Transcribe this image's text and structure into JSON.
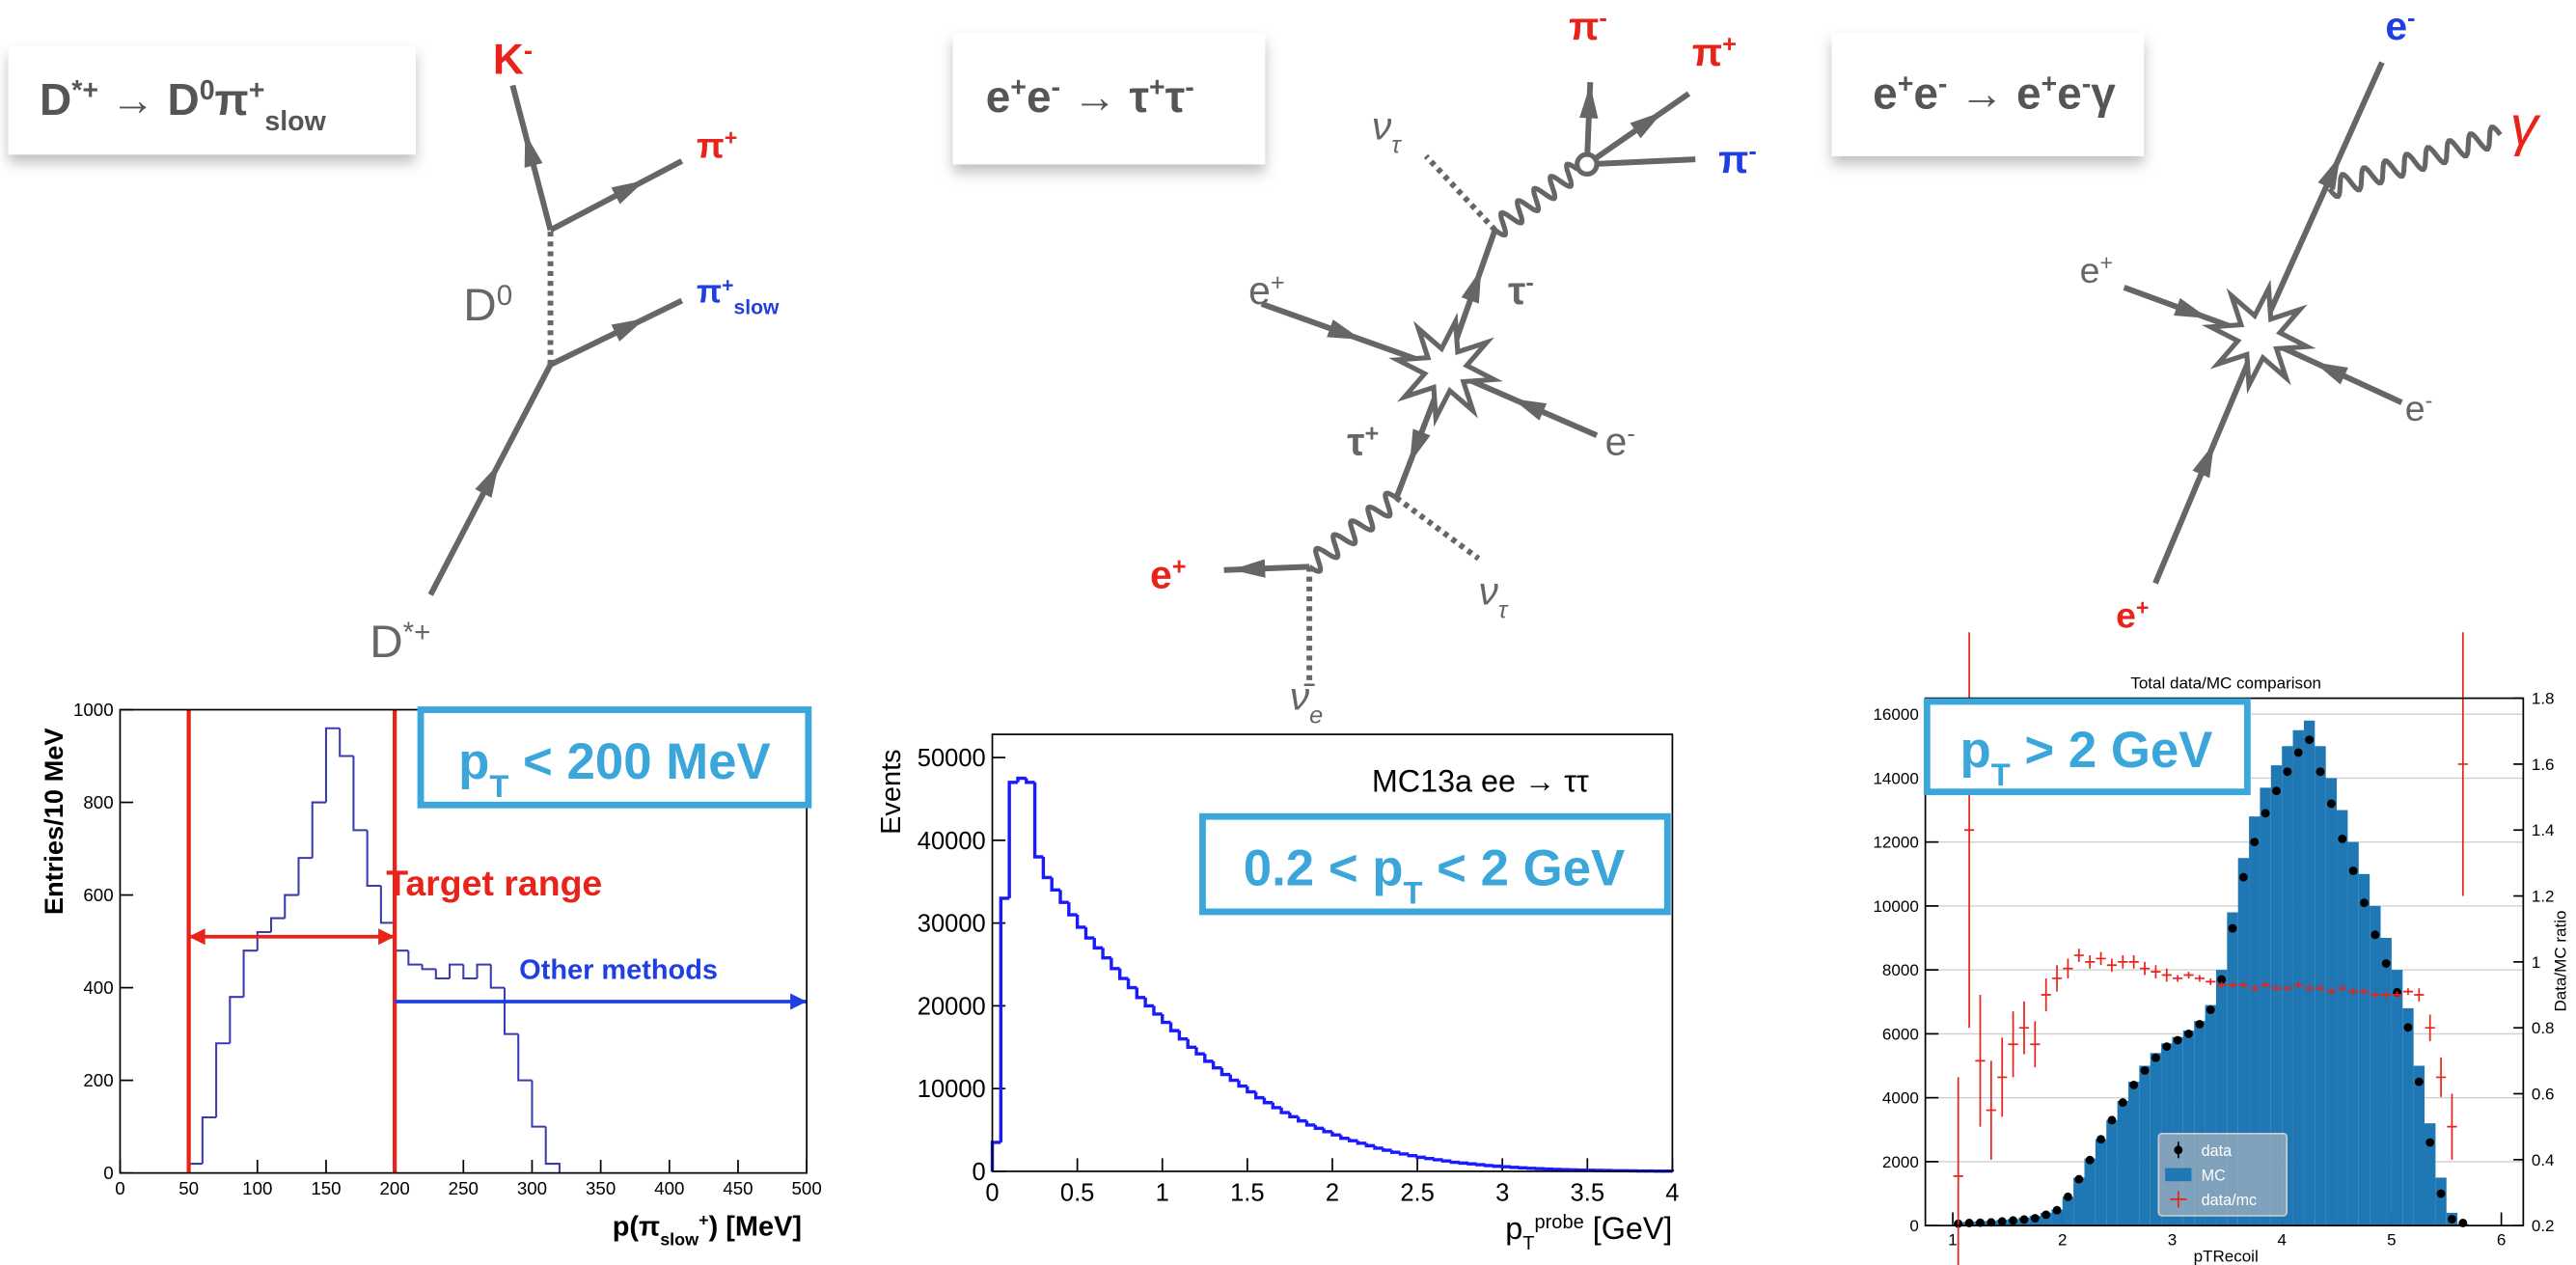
{
  "diagrams": [
    {
      "title": [
        "D",
        {
          "sup": "*+"
        },
        " → D",
        {
          "sup": "0"
        },
        "π",
        {
          "sup": "+"
        },
        {
          "sub": "slow"
        }
      ],
      "labels": [
        {
          "text": [
            "K",
            {
              "sup": "-"
            }
          ],
          "color": "#e8231a"
        },
        {
          "text": [
            "π",
            {
              "sup": "+"
            }
          ],
          "color": "#e8231a"
        },
        {
          "text": [
            "π",
            {
              "sup": "+"
            },
            {
              "sub": "slow"
            }
          ],
          "color": "#1f3fe0"
        },
        {
          "text": [
            "D",
            {
              "sup": "0"
            }
          ],
          "color": "#666666"
        },
        {
          "text": [
            "D",
            {
              "sup": "*+"
            }
          ],
          "color": "#666666"
        }
      ]
    },
    {
      "title": [
        "e",
        {
          "sup": "+"
        },
        "e",
        {
          "sup": "-"
        },
        " → τ",
        {
          "sup": "+"
        },
        "τ",
        {
          "sup": "-"
        }
      ],
      "labels": [
        {
          "text": [
            "π",
            {
              "sup": "-"
            }
          ],
          "color": "#e8231a"
        },
        {
          "text": [
            "π",
            {
              "sup": "+"
            }
          ],
          "color": "#e8231a"
        },
        {
          "text": [
            "π",
            {
              "sup": "-"
            }
          ],
          "color": "#1f3fe0"
        },
        {
          "text": [
            "ν",
            {
              "sub": "τ"
            }
          ],
          "color": "#666666"
        },
        {
          "text": [
            "e",
            {
              "sup": "+"
            }
          ],
          "color": "#666666"
        },
        {
          "text": [
            "τ",
            {
              "sup": "-"
            }
          ],
          "color": "#666666"
        },
        {
          "text": [
            "e",
            {
              "sup": "-"
            }
          ],
          "color": "#666666"
        },
        {
          "text": [
            "τ",
            {
              "sup": "+"
            }
          ],
          "color": "#666666"
        },
        {
          "text": [
            "e",
            {
              "sup": "+"
            }
          ],
          "color": "#e8231a"
        },
        {
          "text": [
            "ν",
            {
              "sub": "τ"
            }
          ],
          "color": "#666666"
        },
        {
          "text": [
            "ν̄",
            {
              "sub": "e"
            }
          ],
          "color": "#666666"
        }
      ]
    },
    {
      "title": [
        "e",
        {
          "sup": "+"
        },
        "e",
        {
          "sup": "-"
        },
        " → e",
        {
          "sup": "+"
        },
        "e",
        {
          "sup": "-"
        },
        "γ"
      ],
      "labels": [
        {
          "text": [
            "e",
            {
              "sup": "-"
            }
          ],
          "color": "#1f3fe0"
        },
        {
          "text": [
            "γ"
          ],
          "color": "#e8231a"
        },
        {
          "text": [
            "e",
            {
              "sup": "+"
            }
          ],
          "color": "#666666"
        },
        {
          "text": [
            "e",
            {
              "sup": "-"
            }
          ],
          "color": "#666666"
        },
        {
          "text": [
            "e",
            {
              "sup": "+"
            }
          ],
          "color": "#e8231a"
        }
      ]
    }
  ],
  "chart_data": [
    {
      "type": "histogram",
      "ylabel": "Entries/10 MeV",
      "xlabel": [
        "p(π",
        {
          "sub": "slow"
        },
        {
          "sup": "+"
        },
        ") [MeV]"
      ],
      "box": [
        "p",
        {
          "sub": "T"
        },
        " < 200 MeV"
      ],
      "box_color": "#3aa6da",
      "color": "#3b3bb0",
      "bins": [
        50,
        60,
        70,
        80,
        90,
        100,
        110,
        120,
        130,
        140,
        150,
        160,
        170,
        180,
        190,
        200,
        210,
        220,
        230,
        240,
        250,
        260,
        270,
        280,
        290,
        300,
        310,
        320
      ],
      "values": [
        20,
        120,
        280,
        380,
        480,
        520,
        550,
        600,
        680,
        800,
        960,
        900,
        740,
        620,
        540,
        480,
        450,
        440,
        420,
        450,
        420,
        450,
        400,
        300,
        200,
        100,
        20
      ],
      "xlim": [
        0,
        500
      ],
      "xticks": [
        0,
        50,
        100,
        150,
        200,
        250,
        300,
        350,
        400,
        450,
        500
      ],
      "ylim": [
        0,
        1000
      ],
      "yticks": [
        0,
        200,
        400,
        600,
        800,
        1000
      ],
      "vlines": [
        50,
        200
      ],
      "vline_color": "#e8231a",
      "annotations": [
        {
          "text": "Target range",
          "color": "#e8231a",
          "x": [
            50,
            200
          ],
          "y": 510,
          "arrow": "both"
        },
        {
          "text": "Other methods",
          "color": "#1f3fe0",
          "x": [
            200,
            500
          ],
          "y": 370,
          "arrow": "end"
        }
      ]
    },
    {
      "type": "histogram",
      "ylabel": "Events",
      "xlabel": [
        "p",
        {
          "sub": "T"
        },
        {
          "sup": "probe"
        },
        " [GeV]"
      ],
      "note": "MC13a ee → ττ",
      "box": [
        "0.2 < p",
        {
          "sub": "T"
        },
        " < 2 GeV"
      ],
      "box_color": "#3aa6da",
      "color": "#1a1aff",
      "bins": [
        0,
        0.05,
        0.1,
        0.15,
        0.2,
        0.25,
        0.3,
        0.35,
        0.4,
        0.45,
        0.5,
        0.55,
        0.6,
        0.65,
        0.7,
        0.75,
        0.8,
        0.85,
        0.9,
        0.95,
        1,
        1.05,
        1.1,
        1.15,
        1.2,
        1.25,
        1.3,
        1.35,
        1.4,
        1.45,
        1.5,
        1.55,
        1.6,
        1.65,
        1.7,
        1.75,
        1.8,
        1.85,
        1.9,
        1.95,
        2,
        2.05,
        2.1,
        2.15,
        2.2,
        2.25,
        2.3,
        2.35,
        2.4,
        2.45,
        2.5,
        2.55,
        2.6,
        2.65,
        2.7,
        2.75,
        2.8,
        2.85,
        2.9,
        2.95,
        3,
        3.05,
        3.1,
        3.15,
        3.2,
        3.25,
        3.3,
        3.35,
        3.4,
        3.45,
        3.5,
        3.55,
        3.6,
        3.65,
        3.7,
        3.75,
        3.8,
        3.85,
        3.9,
        3.95,
        4
      ],
      "values": [
        3500,
        33000,
        47000,
        47500,
        47000,
        38000,
        35500,
        34000,
        32500,
        31000,
        29500,
        28200,
        27000,
        25800,
        24500,
        23300,
        22200,
        21000,
        20000,
        19000,
        18000,
        17000,
        16000,
        15000,
        14200,
        13300,
        12500,
        11700,
        11000,
        10300,
        9600,
        8900,
        8300,
        7700,
        7100,
        6600,
        6100,
        5600,
        5200,
        4800,
        4400,
        4000,
        3700,
        3400,
        3100,
        2800,
        2550,
        2300,
        2100,
        1900,
        1700,
        1550,
        1400,
        1250,
        1100,
        1000,
        900,
        800,
        700,
        620,
        550,
        480,
        420,
        370,
        320,
        280,
        240,
        210,
        180,
        150,
        130,
        110,
        95,
        80,
        70,
        60,
        50,
        40,
        35,
        30
      ],
      "xlim": [
        0,
        4
      ],
      "xticks": [
        0,
        0.5,
        1,
        1.5,
        2,
        2.5,
        3,
        3.5,
        4
      ],
      "ylim": [
        0,
        52800
      ],
      "yticks": [
        0,
        10000,
        20000,
        30000,
        40000,
        50000
      ]
    },
    {
      "type": "histogram",
      "title": "Total data/MC comparison",
      "xlabel": "pTRecoil",
      "y2label": "Data/MC ratio",
      "box": [
        "p",
        {
          "sub": "T"
        },
        " > 2 GeV"
      ],
      "box_color": "#3aa6da",
      "grid": true,
      "legend": "lower center",
      "bins": [
        1,
        1.1,
        1.2,
        1.3,
        1.4,
        1.5,
        1.6,
        1.7,
        1.8,
        1.9,
        2,
        2.1,
        2.2,
        2.3,
        2.4,
        2.5,
        2.6,
        2.7,
        2.8,
        2.9,
        3,
        3.1,
        3.2,
        3.3,
        3.4,
        3.5,
        3.6,
        3.7,
        3.8,
        3.9,
        4,
        4.1,
        4.2,
        4.3,
        4.4,
        4.5,
        4.6,
        4.7,
        4.8,
        4.9,
        5,
        5.1,
        5.2,
        5.3,
        5.4,
        5.5,
        5.6,
        5.7
      ],
      "series": [
        {
          "name": "data",
          "color": "#000000",
          "style": "points",
          "values": [
            60,
            80,
            90,
            100,
            130,
            160,
            190,
            230,
            340,
            480,
            900,
            1450,
            2050,
            2700,
            3300,
            3850,
            4400,
            4850,
            5250,
            5600,
            5800,
            6000,
            6300,
            6750,
            7700,
            9300,
            10900,
            12000,
            12900,
            13600,
            14200,
            14800,
            15200,
            14200,
            13200,
            12100,
            11100,
            10100,
            9100,
            8200,
            7300,
            6200,
            4500,
            2600,
            1000,
            200,
            80
          ]
        },
        {
          "name": "MC",
          "color": "#1f77b4",
          "style": "bars",
          "values": [
            100,
            120,
            130,
            150,
            180,
            200,
            250,
            300,
            400,
            500,
            900,
            1500,
            2100,
            2700,
            3300,
            3900,
            4500,
            5000,
            5400,
            5700,
            5900,
            6100,
            6400,
            6900,
            8000,
            9800,
            11500,
            12800,
            13700,
            14400,
            15000,
            15500,
            15800,
            15000,
            14000,
            13000,
            12000,
            11000,
            10000,
            9000,
            8000,
            6800,
            5000,
            3200,
            1500,
            400,
            50
          ]
        },
        {
          "name": "data/mc",
          "color": "#e8231a",
          "style": "errorbar",
          "axis": "y2",
          "values": [
            0.35,
            1.4,
            0.7,
            0.55,
            0.65,
            0.75,
            0.8,
            0.75,
            0.9,
            0.95,
            0.98,
            1.02,
            1.0,
            1.01,
            0.99,
            1.0,
            1.0,
            0.98,
            0.97,
            0.96,
            0.95,
            0.96,
            0.95,
            0.94,
            0.93,
            0.93,
            0.93,
            0.92,
            0.93,
            0.92,
            0.92,
            0.93,
            0.92,
            0.92,
            0.91,
            0.92,
            0.91,
            0.91,
            0.9,
            0.9,
            0.9,
            0.91,
            0.9,
            0.8,
            0.65,
            0.5,
            1.6
          ],
          "errors": [
            0.3,
            0.6,
            0.2,
            0.15,
            0.12,
            0.1,
            0.08,
            0.07,
            0.05,
            0.04,
            0.03,
            0.02,
            0.02,
            0.02,
            0.02,
            0.02,
            0.02,
            0.02,
            0.02,
            0.02,
            0.01,
            0.01,
            0.01,
            0.01,
            0.01,
            0.01,
            0.01,
            0.01,
            0.01,
            0.01,
            0.01,
            0.01,
            0.01,
            0.01,
            0.01,
            0.01,
            0.01,
            0.01,
            0.01,
            0.01,
            0.01,
            0.01,
            0.02,
            0.04,
            0.06,
            0.1,
            0.4
          ]
        }
      ],
      "xlim": [
        0.75,
        6.2
      ],
      "xticks": [
        1,
        2,
        3,
        4,
        5,
        6
      ],
      "ylim": [
        0,
        16500
      ],
      "yticks": [
        0,
        2000,
        4000,
        6000,
        8000,
        10000,
        12000,
        14000,
        16000
      ],
      "y2lim": [
        0.2,
        1.8
      ],
      "y2ticks": [
        0.2,
        0.4,
        0.6,
        0.8,
        1.0,
        1.2,
        1.4,
        1.6,
        1.8
      ]
    }
  ]
}
